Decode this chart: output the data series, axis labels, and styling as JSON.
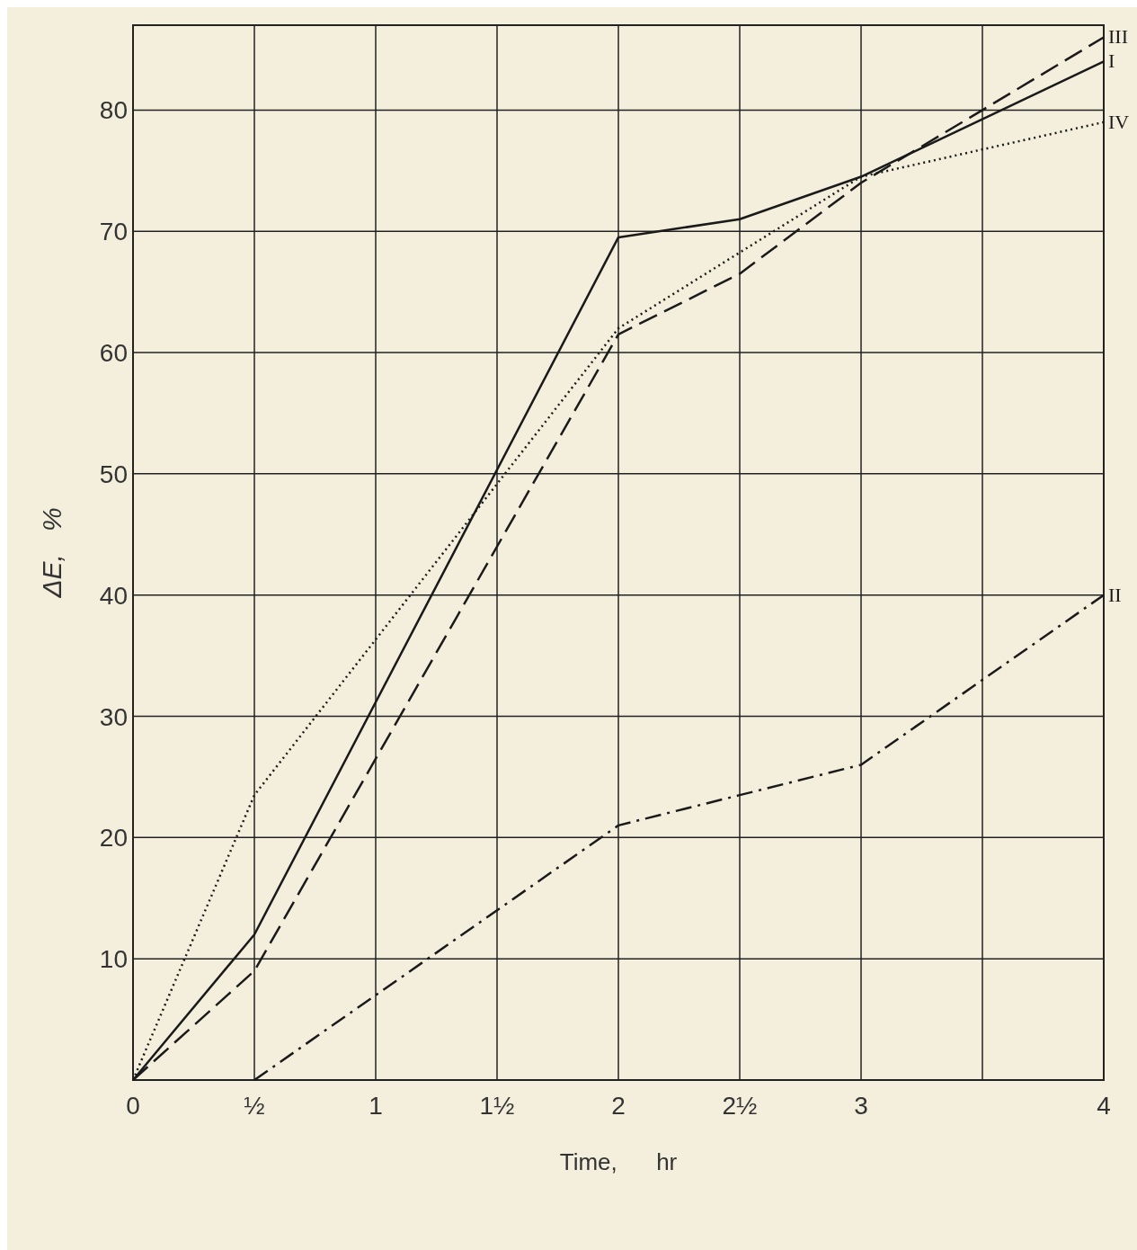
{
  "chart_data": {
    "type": "line",
    "xlabel": "Time,      hr",
    "ylabel": "ΔE,   %",
    "xlim": [
      0,
      4
    ],
    "ylim": [
      0,
      87
    ],
    "xticks": [
      0,
      {
        "value": 0.5,
        "label": "½"
      },
      1,
      {
        "value": 1.5,
        "label": "1½"
      },
      2,
      {
        "value": 2.5,
        "label": "2½"
      },
      3,
      {
        "value": 3.5,
        "label": null
      },
      4
    ],
    "yticks": [
      10,
      20,
      30,
      40,
      50,
      60,
      70,
      80
    ],
    "grid": true,
    "marker": "none",
    "series": [
      {
        "name": "I",
        "color": "#1a1a1a",
        "line_style": "solid",
        "x": [
          0,
          0.5,
          2,
          2.5,
          3,
          4
        ],
        "values": [
          0,
          12,
          69.5,
          71,
          74.5,
          84
        ]
      },
      {
        "name": "II",
        "color": "#1a1a1a",
        "line_style": "dashdot",
        "x": [
          0.5,
          2,
          2.5,
          3,
          4
        ],
        "values": [
          0,
          21,
          23.5,
          26,
          40
        ]
      },
      {
        "name": "III",
        "color": "#1a1a1a",
        "line_style": "dashed",
        "x": [
          0,
          0.5,
          2,
          2.5,
          3,
          4
        ],
        "values": [
          0,
          9,
          61.5,
          66.5,
          74,
          86
        ]
      },
      {
        "name": "IV",
        "color": "#1a1a1a",
        "line_style": "dotted",
        "x": [
          0,
          0.5,
          2,
          3,
          4
        ],
        "values": [
          0,
          23.5,
          62,
          74.5,
          79
        ]
      }
    ]
  }
}
